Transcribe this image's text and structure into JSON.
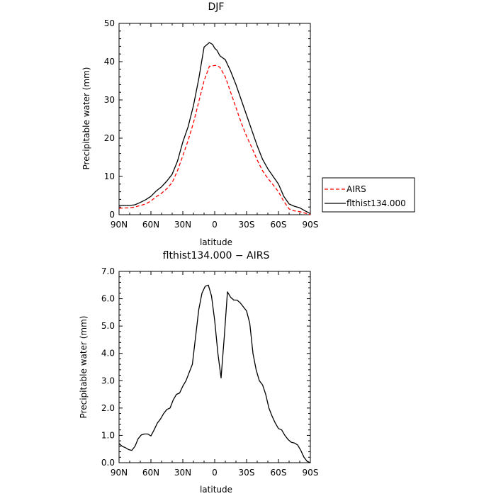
{
  "chart_data": [
    {
      "type": "line",
      "title": "DJF",
      "xlabel": "latitude",
      "ylabel": "Precipitable water (mm)",
      "xlim": [
        90,
        -90
      ],
      "ylim": [
        0,
        50
      ],
      "x_ticks": [
        90,
        60,
        30,
        0,
        -30,
        -60,
        -90
      ],
      "x_tick_labels": [
        "90N",
        "60N",
        "30N",
        "0",
        "30S",
        "60S",
        "90S"
      ],
      "y_ticks": [
        0,
        10,
        20,
        30,
        40,
        50
      ],
      "y_tick_labels": [
        "0",
        "10",
        "20",
        "30",
        "40",
        "50"
      ],
      "legend_position": "outside-right",
      "series": [
        {
          "name": "AIRS",
          "color": "#ff0000",
          "dash": "dashed",
          "x": [
            90,
            80,
            75,
            70,
            65,
            60,
            55,
            50,
            45,
            40,
            35,
            30,
            25,
            20,
            15,
            10,
            5,
            2,
            0,
            -2,
            -5,
            -10,
            -15,
            -20,
            -25,
            -30,
            -35,
            -40,
            -45,
            -50,
            -55,
            -60,
            -65,
            -70,
            -75,
            -80,
            -85,
            -90
          ],
          "y": [
            1.7,
            1.8,
            2.0,
            2.4,
            2.8,
            3.6,
            4.7,
            5.6,
            6.8,
            8.4,
            11.5,
            15.4,
            19.4,
            24.0,
            29.5,
            35.0,
            38.8,
            38.9,
            39.0,
            39.0,
            38.5,
            36.0,
            32.0,
            28.0,
            24.0,
            20.5,
            17.5,
            14.3,
            11.5,
            9.5,
            7.8,
            6.0,
            3.5,
            1.5,
            1.0,
            0.8,
            0.4,
            0.0
          ]
        },
        {
          "name": "flthist134.000",
          "color": "#000000",
          "dash": "solid",
          "x": [
            90,
            80,
            75,
            70,
            65,
            60,
            55,
            50,
            45,
            40,
            35,
            30,
            25,
            20,
            15,
            10,
            5,
            2,
            0,
            -2,
            -5,
            -10,
            -15,
            -20,
            -25,
            -30,
            -35,
            -40,
            -45,
            -50,
            -55,
            -60,
            -65,
            -70,
            -75,
            -80,
            -85,
            -90
          ],
          "y": [
            2.4,
            2.4,
            2.6,
            3.2,
            3.9,
            4.8,
            6.2,
            7.3,
            8.8,
            10.6,
            14.0,
            19.0,
            23.0,
            28.5,
            35.5,
            43.8,
            45.0,
            44.5,
            43.5,
            43.0,
            41.5,
            40.5,
            37.5,
            34.0,
            30.0,
            26.0,
            22.0,
            18.0,
            14.5,
            12.0,
            10.0,
            8.0,
            4.8,
            2.8,
            2.2,
            1.8,
            1.0,
            0.3
          ]
        }
      ]
    },
    {
      "type": "line",
      "title": "flthist134.000 − AIRS",
      "xlabel": "latitude",
      "ylabel": "Precipitable water (mm)",
      "xlim": [
        90,
        -90
      ],
      "ylim": [
        0,
        7
      ],
      "x_ticks": [
        90,
        60,
        30,
        0,
        -30,
        -60,
        -90
      ],
      "x_tick_labels": [
        "90N",
        "60N",
        "30N",
        "0",
        "30S",
        "60S",
        "90S"
      ],
      "y_ticks": [
        0,
        1,
        2,
        3,
        4,
        5,
        6,
        7
      ],
      "y_tick_labels": [
        "0.0",
        "1.0",
        "2.0",
        "3.0",
        "4.0",
        "5.0",
        "6.0",
        "7.0"
      ],
      "series": [
        {
          "color": "#000000",
          "dash": "solid",
          "x": [
            90,
            87,
            84,
            81,
            78,
            75,
            72,
            69,
            66,
            63,
            60,
            57,
            54,
            51,
            48,
            45,
            42,
            39,
            36,
            33,
            30,
            27,
            24,
            21,
            18,
            15,
            12,
            9,
            6,
            3,
            0,
            -3,
            -6,
            -9,
            -12,
            -15,
            -18,
            -21,
            -24,
            -27,
            -30,
            -33,
            -36,
            -39,
            -42,
            -45,
            -48,
            -51,
            -54,
            -57,
            -60,
            -63,
            -66,
            -69,
            -72,
            -75,
            -78,
            -81,
            -84,
            -87,
            -90
          ],
          "y": [
            0.7,
            0.6,
            0.55,
            0.48,
            0.45,
            0.6,
            0.88,
            1.02,
            1.05,
            1.05,
            0.98,
            1.2,
            1.45,
            1.6,
            1.8,
            1.95,
            2.0,
            2.3,
            2.5,
            2.55,
            2.8,
            3.0,
            3.3,
            3.6,
            4.6,
            5.6,
            6.2,
            6.45,
            6.5,
            6.1,
            5.2,
            4.0,
            3.1,
            4.6,
            6.25,
            6.05,
            5.95,
            5.95,
            5.85,
            5.7,
            5.55,
            5.1,
            4.0,
            3.4,
            3.0,
            2.85,
            2.5,
            2.0,
            1.7,
            1.45,
            1.25,
            1.2,
            1.0,
            0.85,
            0.75,
            0.72,
            0.65,
            0.45,
            0.2,
            0.05,
            0.0
          ]
        }
      ]
    }
  ]
}
